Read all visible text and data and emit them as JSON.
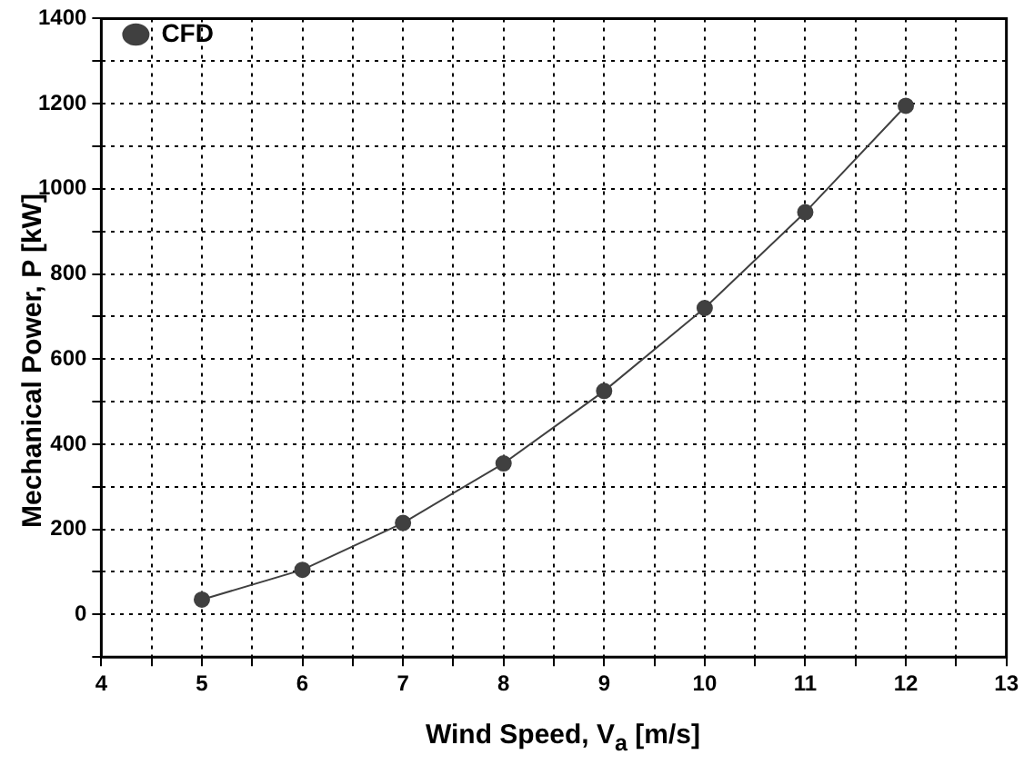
{
  "chart_data": {
    "type": "line",
    "xlabel": "Wind Speed, V$_{a}$ [m/s]",
    "ylabel": "Mechanical Power, P [kW]",
    "x": [
      5,
      6,
      7,
      8,
      9,
      10,
      11,
      12
    ],
    "series": [
      {
        "name": "CFD",
        "color": "#404040",
        "values": [
          35,
          105,
          215,
          355,
          525,
          720,
          945,
          1195
        ]
      }
    ],
    "xlim": [
      4,
      13
    ],
    "xticks": [
      4,
      {
        "value": 4.5,
        "label": null
      },
      5,
      {
        "value": 5.5,
        "label": null
      },
      6,
      {
        "value": 6.5,
        "label": null
      },
      7,
      {
        "value": 7.5,
        "label": null
      },
      8,
      {
        "value": 8.5,
        "label": null
      },
      9,
      {
        "value": 9.5,
        "label": null
      },
      10,
      {
        "value": 10.5,
        "label": null
      },
      11,
      {
        "value": 11.5,
        "label": null
      },
      12,
      {
        "value": 12.5,
        "label": null
      },
      13
    ],
    "ylim": [
      -100,
      1400
    ],
    "yticks": [
      {
        "value": -100,
        "label": null
      },
      0,
      {
        "value": 100,
        "label": null
      },
      200,
      {
        "value": 300,
        "label": null
      },
      400,
      {
        "value": 500,
        "label": null
      },
      600,
      {
        "value": 700,
        "label": null
      },
      800,
      {
        "value": 900,
        "label": null
      },
      1000,
      {
        "value": 1100,
        "label": null
      },
      1200,
      {
        "value": 1300,
        "label": null
      },
      1400
    ],
    "grid": true,
    "line_style": "solid",
    "marker": "circle",
    "legend": "top left"
  }
}
